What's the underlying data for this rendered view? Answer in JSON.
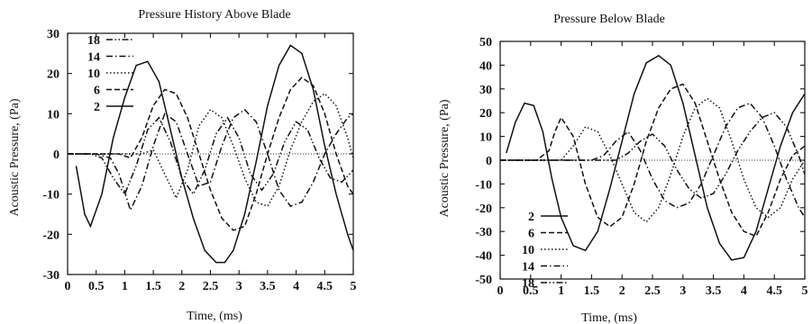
{
  "chart_data": [
    {
      "type": "line",
      "title": "Pressure History Above Blade",
      "xlabel": "Time, (ms)",
      "ylabel": "Acoustic Pressure, (Pa)",
      "xlim": [
        0,
        5
      ],
      "ylim": [
        -30,
        30
      ],
      "xticks": [
        0,
        0.5,
        1,
        1.5,
        2,
        2.5,
        3,
        3.5,
        4,
        4.5,
        5
      ],
      "xtick_labels": [
        "0",
        "0.5",
        "1",
        "1.5",
        "2",
        "2.5",
        "3",
        "3.5",
        "4",
        "4.5",
        "5"
      ],
      "yticks": [
        30,
        20,
        10,
        0,
        -10,
        -20,
        -30
      ],
      "ytick_labels": [
        "30",
        "20",
        "10",
        "0",
        "-10",
        "-20",
        "-30"
      ],
      "legend_position": "top-left",
      "legend_order": [
        "18",
        "14",
        "10",
        "6",
        "2"
      ],
      "series": [
        {
          "name": "2",
          "dash": "solid",
          "x": [
            0.15,
            0.3,
            0.4,
            0.6,
            0.8,
            1.0,
            1.2,
            1.4,
            1.6,
            1.8,
            2.0,
            2.2,
            2.4,
            2.6,
            2.75,
            2.9,
            3.1,
            3.3,
            3.5,
            3.7,
            3.9,
            4.1,
            4.3,
            4.5,
            4.7,
            4.9,
            5.0
          ],
          "y": [
            -3,
            -15,
            -18,
            -10,
            4,
            14,
            22,
            23,
            18,
            6,
            -6,
            -16,
            -24,
            -27,
            -27,
            -24,
            -15,
            -2,
            12,
            22,
            27,
            25,
            16,
            2,
            -10,
            -20,
            -24
          ]
        },
        {
          "name": "6",
          "dash": "longdash",
          "x": [
            0,
            0.5,
            0.9,
            1.1,
            1.3,
            1.5,
            1.7,
            1.9,
            2.1,
            2.3,
            2.5,
            2.7,
            2.9,
            3.1,
            3.3,
            3.5,
            3.7,
            3.9,
            4.1,
            4.3,
            4.5,
            4.7,
            4.9,
            5.0
          ],
          "y": [
            0,
            0,
            0,
            -1,
            4,
            12,
            16,
            15,
            9,
            0,
            -9,
            -16,
            -19,
            -18,
            -10,
            0,
            9,
            16,
            19,
            17,
            10,
            0,
            -8,
            -10
          ]
        },
        {
          "name": "10",
          "dash": "dotted",
          "x": [
            0,
            1.3,
            1.5,
            1.7,
            1.9,
            2.1,
            2.3,
            2.5,
            2.7,
            2.9,
            3.1,
            3.3,
            3.5,
            3.7,
            3.9,
            4.1,
            4.3,
            4.5,
            4.7,
            4.9,
            5.0
          ],
          "y": [
            0,
            0,
            1,
            -5,
            -11,
            -4,
            7,
            11,
            9,
            2,
            -6,
            -12,
            -13,
            -8,
            1,
            8,
            13,
            15,
            12,
            4,
            -1
          ]
        },
        {
          "name": "14",
          "dash": "dashdot",
          "x": [
            0,
            0.5,
            0.75,
            0.9,
            1.1,
            1.3,
            1.5,
            1.7,
            1.9,
            2.1,
            2.3,
            2.5,
            2.7,
            2.9,
            3.1,
            3.3,
            3.5,
            3.7,
            3.9,
            4.1,
            4.3,
            4.5,
            4.7,
            4.9,
            5.0
          ],
          "y": [
            0,
            0,
            -1,
            -5,
            -14,
            -8,
            2,
            10,
            8,
            0,
            -8,
            -7,
            2,
            9,
            11,
            8,
            0,
            -9,
            -13,
            -12,
            -7,
            0,
            5,
            9,
            10
          ]
        },
        {
          "name": "18",
          "dash": "dashdotdot",
          "x": [
            0,
            0.4,
            0.6,
            0.8,
            1.0,
            1.2,
            1.4,
            1.6,
            1.8,
            2.0,
            2.2,
            2.4,
            2.6,
            2.8,
            3.0,
            3.2,
            3.4,
            3.6,
            3.8,
            4.0,
            4.2,
            4.4,
            4.6,
            4.8,
            5.0
          ],
          "y": [
            0,
            0,
            -1,
            -6,
            -10,
            -3,
            6,
            9,
            3,
            -6,
            -10,
            -4,
            5,
            9,
            4,
            -5,
            -9,
            -5,
            3,
            8,
            6,
            -1,
            -6,
            -7,
            -4
          ]
        }
      ]
    },
    {
      "type": "line",
      "title": "Pressure Below Blade",
      "xlabel": "Time, (ms)",
      "ylabel": "Acoustic Pressure, (Pa)",
      "xlim": [
        0,
        5
      ],
      "ylim": [
        -50,
        50
      ],
      "xticks": [
        0,
        0.5,
        1,
        1.5,
        2,
        2.5,
        3,
        3.5,
        4,
        4.5,
        5
      ],
      "xtick_labels": [
        "0",
        "0.5",
        "1",
        "1.5",
        "2",
        "2.5",
        "3",
        "3.5",
        "4",
        "4.5",
        "5"
      ],
      "yticks": [
        50,
        40,
        30,
        20,
        10,
        0,
        -10,
        -20,
        -30,
        -40,
        -50
      ],
      "ytick_labels": [
        "50",
        "40",
        "30",
        "20",
        "10",
        "0",
        "-10",
        "-20",
        "-30",
        "-40",
        "-50"
      ],
      "legend_position": "bottom-left",
      "legend_order": [
        "2",
        "6",
        "10",
        "14",
        "18"
      ],
      "series": [
        {
          "name": "2",
          "dash": "solid",
          "x": [
            0.1,
            0.25,
            0.4,
            0.55,
            0.7,
            0.85,
            1.0,
            1.2,
            1.4,
            1.6,
            1.8,
            2.0,
            2.2,
            2.4,
            2.6,
            2.8,
            3.0,
            3.2,
            3.4,
            3.6,
            3.8,
            4.0,
            4.2,
            4.4,
            4.6,
            4.8,
            5.0
          ],
          "y": [
            3,
            16,
            24,
            23,
            12,
            -8,
            -24,
            -36,
            -38,
            -30,
            -12,
            8,
            28,
            41,
            44,
            40,
            24,
            2,
            -20,
            -35,
            -42,
            -41,
            -30,
            -12,
            6,
            20,
            28
          ]
        },
        {
          "name": "6",
          "dash": "longdash",
          "x": [
            0,
            0.6,
            0.8,
            0.9,
            1.0,
            1.2,
            1.4,
            1.6,
            1.8,
            2.0,
            2.2,
            2.4,
            2.6,
            2.8,
            3.0,
            3.2,
            3.4,
            3.6,
            3.8,
            4.0,
            4.2,
            4.4,
            4.6,
            4.8,
            5.0
          ],
          "y": [
            0,
            0,
            4,
            12,
            18,
            10,
            -10,
            -24,
            -28,
            -24,
            -10,
            8,
            22,
            30,
            32,
            24,
            8,
            -8,
            -22,
            -30,
            -32,
            -22,
            -8,
            2,
            6
          ]
        },
        {
          "name": "10",
          "dash": "dotted",
          "x": [
            0,
            1.0,
            1.2,
            1.4,
            1.6,
            1.8,
            2.0,
            2.2,
            2.4,
            2.6,
            2.8,
            3.0,
            3.2,
            3.4,
            3.6,
            3.8,
            4.0,
            4.2,
            4.4,
            4.6,
            4.8,
            5.0
          ],
          "y": [
            0,
            0,
            6,
            14,
            12,
            2,
            -10,
            -22,
            -26,
            -20,
            -6,
            10,
            22,
            26,
            22,
            8,
            -8,
            -20,
            -24,
            -20,
            -8,
            0
          ]
        },
        {
          "name": "14",
          "dash": "dashdot",
          "x": [
            0,
            1.5,
            1.7,
            1.9,
            2.1,
            2.3,
            2.5,
            2.7,
            2.9,
            3.1,
            3.3,
            3.5,
            3.7,
            3.9,
            4.1,
            4.3,
            4.5,
            4.7,
            4.9,
            5.0
          ],
          "y": [
            0,
            0,
            2,
            8,
            12,
            4,
            -8,
            -17,
            -20,
            -18,
            -10,
            2,
            14,
            22,
            24,
            18,
            6,
            -8,
            -20,
            -24
          ]
        },
        {
          "name": "18",
          "dash": "dashdotdot",
          "x": [
            0,
            1.9,
            2.1,
            2.3,
            2.5,
            2.7,
            2.9,
            3.1,
            3.3,
            3.5,
            3.7,
            3.9,
            4.1,
            4.3,
            4.5,
            4.7,
            4.9,
            5.0
          ],
          "y": [
            0,
            0,
            3,
            8,
            11,
            6,
            -4,
            -12,
            -16,
            -14,
            -6,
            4,
            12,
            18,
            20,
            14,
            2,
            -6
          ]
        }
      ]
    }
  ]
}
